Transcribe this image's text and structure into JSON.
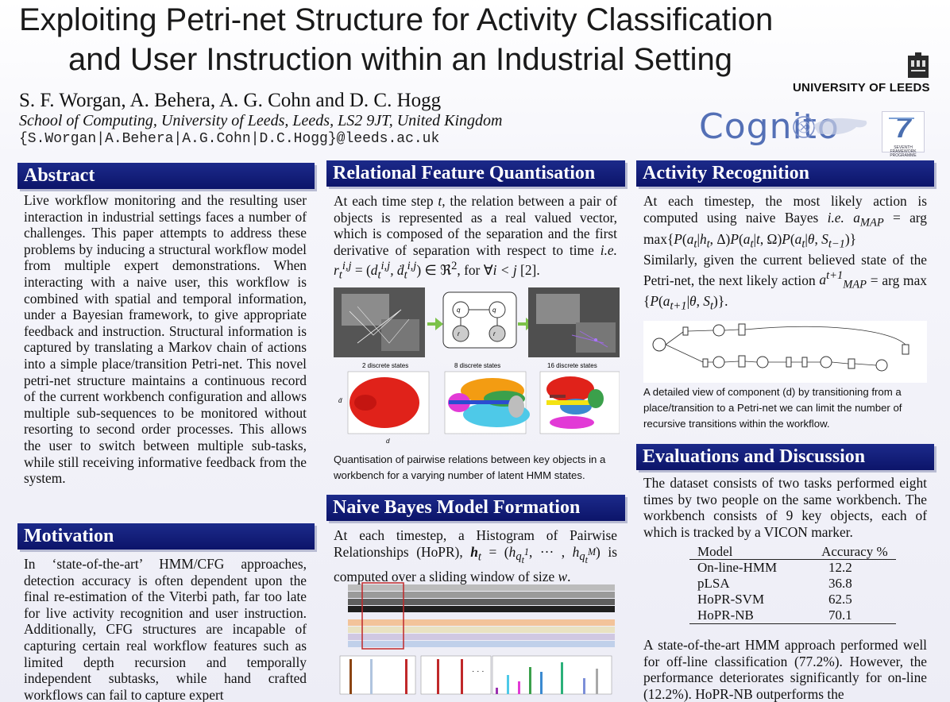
{
  "header": {
    "title_line1": "Exploiting Petri-net Structure for Activity Classification",
    "title_line2": "and User Instruction within an Industrial Setting",
    "authors": "S. F. Worgan, A. Behera, A. G. Cohn and D. C. Hogg",
    "affiliation": "School of Computing, University of Leeds, Leeds, LS2 9JT, United Kingdom",
    "emails": "{S.Worgan|A.Behera|A.G.Cohn|D.C.Hogg}@leeds.ac.uk",
    "university": "UNIVERSITY OF LEEDS",
    "project": "Cognito",
    "fp7_text": "SEVENTH FRAMEWORK PROGRAMME"
  },
  "abstract": {
    "heading": "Abstract",
    "text": "Live workflow monitoring and the resulting user interaction in industrial settings faces a number of challenges. This paper attempts to address these problems by inducing a structural workflow model from multiple expert demonstrations. When interacting with a naive user, this workflow is combined with spatial and temporal information, under a Bayesian framework, to give appropriate feedback and instruction. Structural information is captured by translating a Markov chain of actions into a simple place/transition Petri-net. This novel petri-net structure maintains a continuous record of the current workbench configuration and allows multiple sub-sequences to be monitored without resorting to second order processes. This allows the user to switch between multiple sub-tasks, while still receiving informative feedback from the system."
  },
  "motivation": {
    "heading": "Motivation",
    "text": "In ‘state-of-the-art’ HMM/CFG approaches, detection accuracy is often dependent upon the final re-estimation of the Viterbi path, far too late for live activity recognition and user instruction. Additionally, CFG structures are incapable of capturing certain real workflow features such as limited depth recursion and temporally independent subtasks, while hand crafted workflows can fail to capture expert"
  },
  "relational": {
    "heading": "Relational Feature Quantisation",
    "text": "At each time step t, the relation between a pair of objects is represented as a real valued vector, which is composed of the separation and the first derivative of separation with respect to time i.e. r_t^{i,j} = (d_t^{i,j}, ḋ_t^{i,j}) ∈ ℜ², for ∀i < j [2].",
    "plot_labels": [
      "2 discrete states",
      "8 discrete states",
      "16 discrete states"
    ],
    "caption": "Quantisation of pairwise relations between key objects in a workbench for a varying number of latent HMM states."
  },
  "naive_bayes": {
    "heading": "Naive Bayes Model Formation",
    "text": "At each timestep, a Histogram of Pairwise Relationships (HoPR), h_t = (h_{q_t^1}, ··· , h_{q_t^M}) is computed over a sliding window of size w."
  },
  "activity": {
    "heading": "Activity Recognition",
    "text1": "At each timestep, the most likely action is computed using naive Bayes i.e. a_MAP = arg max{P(a_t|h_t, Δ)P(a_t|t, Ω)P(a_t|θ, S_{t−1})}",
    "text2": "Similarly, given the current believed state of the Petri-net, the next likely action a_MAP^{t+1} = arg max {P(a_{t+1}|θ, S_t)}.",
    "caption": "A detailed view of component (d) by transitioning from a place/transition to a Petri-net we can limit the number of recursive transitions within the workflow."
  },
  "evaluation": {
    "heading": "Evaluations and Discussion",
    "text1": "The dataset consists of two tasks performed eight times by two people on the same workbench. The workbench consists of 9 key objects, each of which is tracked by a VICON marker.",
    "table_headers": [
      "Model",
      "Accuracy %"
    ],
    "table_rows": [
      [
        "On-line-HMM",
        "12.2"
      ],
      [
        "pLSA",
        "36.8"
      ],
      [
        "HoPR-SVM",
        "62.5"
      ],
      [
        "HoPR-NB",
        "70.1"
      ]
    ],
    "text2": "A state-of-the-art HMM approach performed well for off-line classification (77.2%). However, the performance deteriorates significantly for on-line (12.2%). HoPR-NB outperforms the"
  },
  "colors": {
    "heading_bg": "#111a7a",
    "accent_blue": "#5470b6"
  }
}
